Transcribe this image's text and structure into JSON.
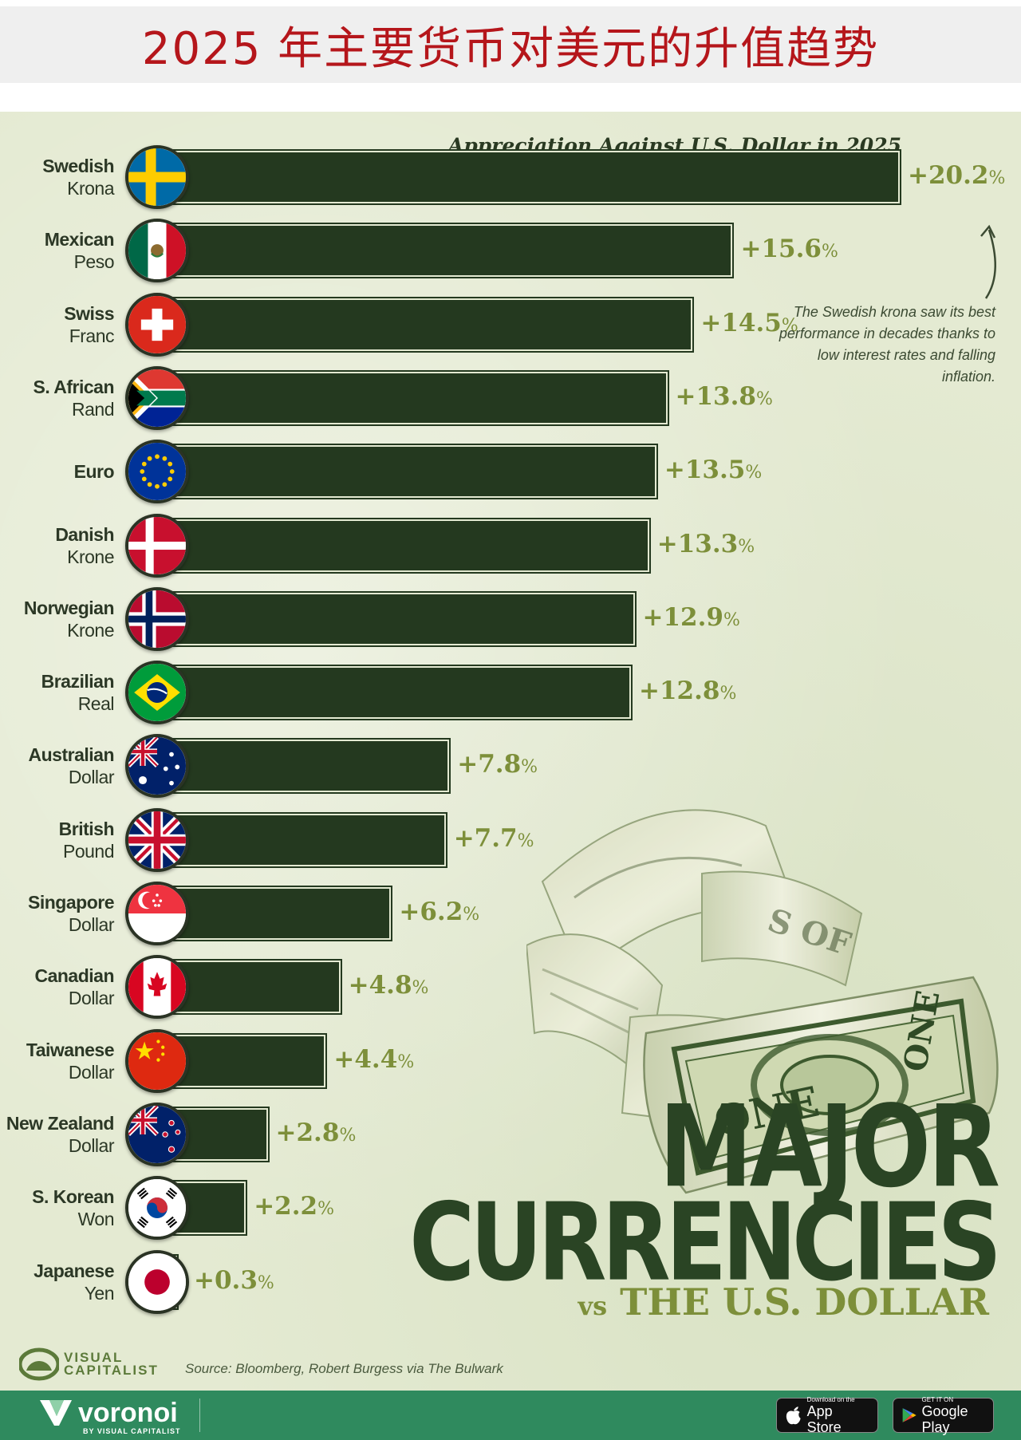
{
  "page_title": "2025 年主要货币对美元的升值趋势",
  "chart_data": {
    "type": "bar",
    "orientation": "horizontal",
    "title": "Appreciation Against U.S. Dollar in 2025",
    "unit": "%",
    "xlim": [
      0,
      20.2
    ],
    "categories": [
      {
        "line1": "Swedish",
        "line2": "Krona",
        "flag": "sweden"
      },
      {
        "line1": "Mexican",
        "line2": "Peso",
        "flag": "mexico"
      },
      {
        "line1": "Swiss",
        "line2": "Franc",
        "flag": "switzerland"
      },
      {
        "line1": "S. African",
        "line2": "Rand",
        "flag": "south-africa"
      },
      {
        "line1": "Euro",
        "line2": "",
        "flag": "eu"
      },
      {
        "line1": "Danish",
        "line2": "Krone",
        "flag": "denmark"
      },
      {
        "line1": "Norwegian",
        "line2": "Krone",
        "flag": "norway"
      },
      {
        "line1": "Brazilian",
        "line2": "Real",
        "flag": "brazil"
      },
      {
        "line1": "Australian",
        "line2": "Dollar",
        "flag": "australia"
      },
      {
        "line1": "British",
        "line2": "Pound",
        "flag": "uk"
      },
      {
        "line1": "Singapore",
        "line2": "Dollar",
        "flag": "singapore"
      },
      {
        "line1": "Canadian",
        "line2": "Dollar",
        "flag": "canada"
      },
      {
        "line1": "Taiwanese",
        "line2": "Dollar",
        "flag": "china"
      },
      {
        "line1": "New Zealand",
        "line2": "Dollar",
        "flag": "new-zealand"
      },
      {
        "line1": "S. Korean",
        "line2": "Won",
        "flag": "south-korea"
      },
      {
        "line1": "Japanese",
        "line2": "Yen",
        "flag": "japan"
      }
    ],
    "values": [
      20.2,
      15.6,
      14.5,
      13.8,
      13.5,
      13.3,
      12.9,
      12.8,
      7.8,
      7.7,
      6.2,
      4.8,
      4.4,
      2.8,
      2.2,
      0.3
    ],
    "value_labels": [
      "+20.2",
      "+15.6",
      "+14.5",
      "+13.8",
      "+13.5",
      "+13.3",
      "+12.9",
      "+12.8",
      "+7.8",
      "+7.7",
      "+6.2",
      "+4.8",
      "+4.4",
      "+2.8",
      "+2.2",
      "+0.3"
    ],
    "annotation": "The Swedish krona saw its best performance in decades thanks to low interest rates and falling inflation.",
    "colors": {
      "bar": "#24391f",
      "value": "#7d8f3a",
      "background": "#e4ead2"
    }
  },
  "headline": {
    "line1": "MAJOR",
    "line2": "CURRENCIES",
    "vs": "vs",
    "line3": "THE U.S. DOLLAR"
  },
  "brand": {
    "line1": "VISUAL",
    "line2": "CAPITALIST"
  },
  "source": "Source: Bloomberg, Robert Burgess via The Bulwark",
  "footer": {
    "logo_name": "voronoi",
    "logo_sub": "BY VISUAL CAPITALIST",
    "app_store_small": "Download on the",
    "app_store_big": "App Store",
    "google_play_small": "GET IT ON",
    "google_play_big": "Google Play"
  }
}
